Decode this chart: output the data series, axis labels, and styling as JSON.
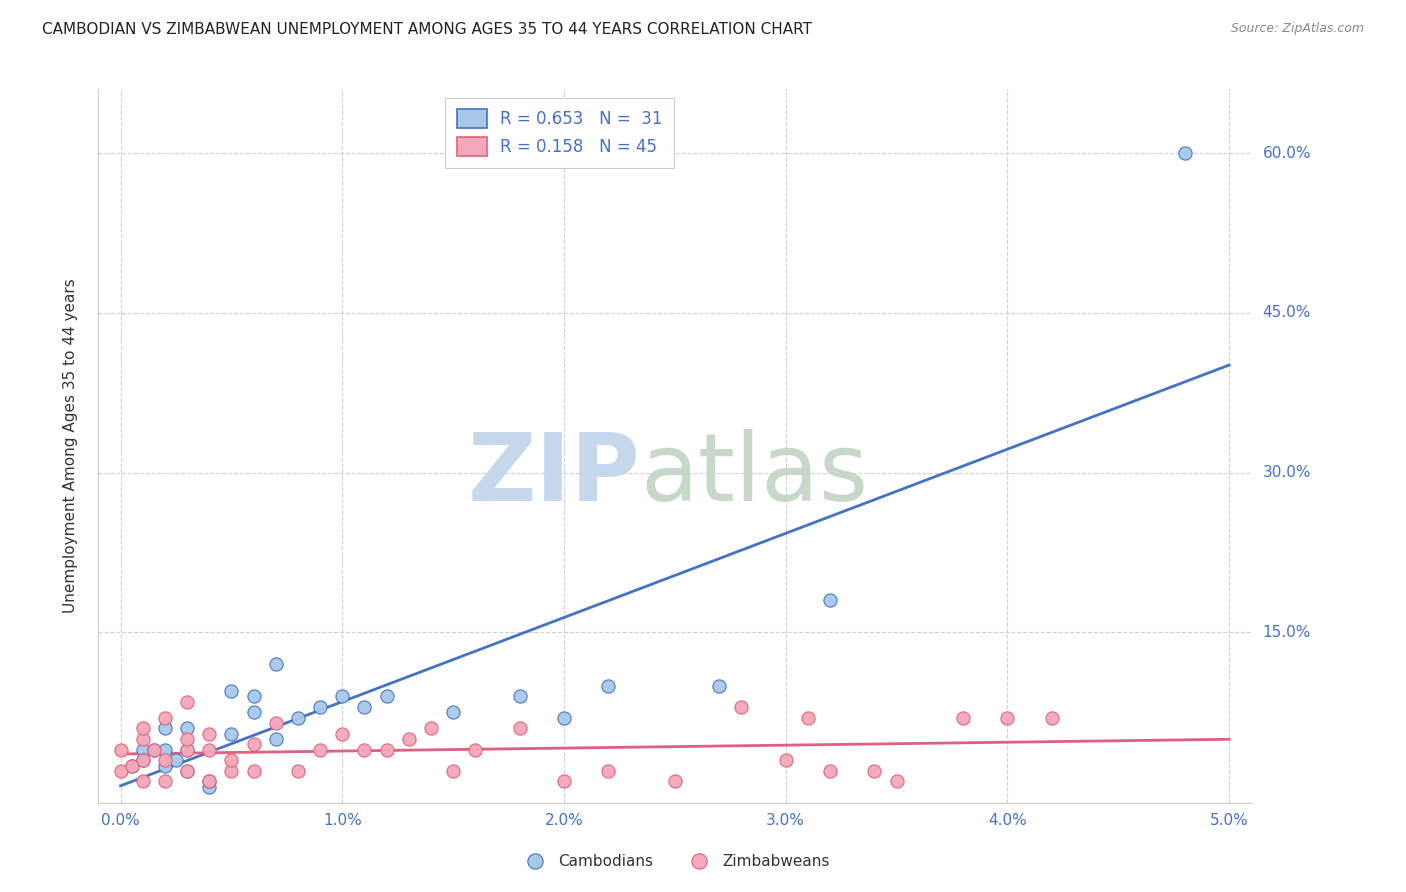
{
  "title": "CAMBODIAN VS ZIMBABWEAN UNEMPLOYMENT AMONG AGES 35 TO 44 YEARS CORRELATION CHART",
  "source": "Source: ZipAtlas.com",
  "ylabel": "Unemployment Among Ages 35 to 44 years",
  "x_tick_labels": [
    "0.0%",
    "1.0%",
    "2.0%",
    "3.0%",
    "4.0%",
    "5.0%"
  ],
  "x_ticks": [
    0.0,
    0.01,
    0.02,
    0.03,
    0.04,
    0.05
  ],
  "y_tick_labels": [
    "15.0%",
    "30.0%",
    "45.0%",
    "60.0%"
  ],
  "y_ticks": [
    0.15,
    0.3,
    0.45,
    0.6
  ],
  "xlim": [
    -0.001,
    0.051
  ],
  "ylim": [
    -0.01,
    0.66
  ],
  "cambodian_color": "#a8c8e8",
  "zimbabwean_color": "#f4a8b8",
  "cambodian_line_color": "#4472c4",
  "zimbabwean_line_color": "#e06080",
  "watermark_zip_color": "#c8d8ec",
  "watermark_atlas_color": "#c8d8c8",
  "cambodian_x": [
    0.0005,
    0.001,
    0.001,
    0.0015,
    0.002,
    0.002,
    0.002,
    0.0025,
    0.003,
    0.003,
    0.003,
    0.004,
    0.004,
    0.005,
    0.005,
    0.006,
    0.006,
    0.007,
    0.007,
    0.008,
    0.009,
    0.01,
    0.011,
    0.012,
    0.015,
    0.018,
    0.02,
    0.022,
    0.027,
    0.032,
    0.048
  ],
  "cambodian_y": [
    0.025,
    0.04,
    0.03,
    0.04,
    0.025,
    0.04,
    0.06,
    0.03,
    0.04,
    0.06,
    0.02,
    0.005,
    0.01,
    0.055,
    0.095,
    0.09,
    0.075,
    0.12,
    0.05,
    0.07,
    0.08,
    0.09,
    0.08,
    0.09,
    0.075,
    0.09,
    0.07,
    0.1,
    0.1,
    0.18,
    0.6
  ],
  "zimbabwean_x": [
    0.0,
    0.0,
    0.0005,
    0.001,
    0.001,
    0.001,
    0.001,
    0.0015,
    0.002,
    0.002,
    0.002,
    0.003,
    0.003,
    0.003,
    0.003,
    0.004,
    0.004,
    0.004,
    0.005,
    0.005,
    0.006,
    0.006,
    0.007,
    0.008,
    0.009,
    0.01,
    0.011,
    0.012,
    0.013,
    0.014,
    0.015,
    0.016,
    0.018,
    0.02,
    0.022,
    0.025,
    0.028,
    0.03,
    0.031,
    0.032,
    0.034,
    0.035,
    0.038,
    0.04,
    0.042
  ],
  "zimbabwean_y": [
    0.02,
    0.04,
    0.025,
    0.01,
    0.03,
    0.05,
    0.06,
    0.04,
    0.01,
    0.03,
    0.07,
    0.02,
    0.04,
    0.05,
    0.085,
    0.01,
    0.04,
    0.055,
    0.02,
    0.03,
    0.02,
    0.045,
    0.065,
    0.02,
    0.04,
    0.055,
    0.04,
    0.04,
    0.05,
    0.06,
    0.02,
    0.04,
    0.06,
    0.01,
    0.02,
    0.01,
    0.08,
    0.03,
    0.07,
    0.02,
    0.02,
    0.01,
    0.07,
    0.07,
    0.07
  ],
  "background_color": "#ffffff",
  "grid_color": "#cccccc",
  "title_color": "#222222",
  "axis_label_color": "#4472c4",
  "bottom_legend_cambodian": "Cambodians",
  "bottom_legend_zimbabwean": "Zimbabweans",
  "legend_labels": [
    "R = 0.653   N =  31",
    "R = 0.158   N = 45"
  ]
}
